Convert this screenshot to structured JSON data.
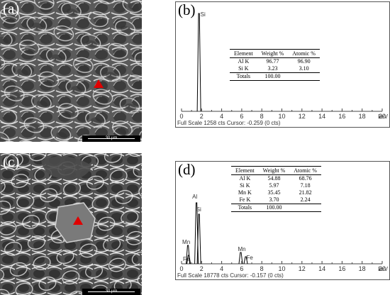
{
  "panels": {
    "a": {
      "label": "(a)",
      "scale_label": "30 µm"
    },
    "c": {
      "label": "(c)",
      "scale_label": "30 µm"
    },
    "b": {
      "label": "(b)",
      "status": "Full Scale 1258 cts Cursor: -0.259  (0 cts)",
      "unit": "keV",
      "ticks": [
        "0",
        "2",
        "4",
        "6",
        "8",
        "10",
        "12",
        "14",
        "16",
        "18",
        "20"
      ],
      "peaks": [
        {
          "label": "Si",
          "kev": 1.74
        }
      ],
      "table": {
        "headers": [
          "Element",
          "Weight %",
          "Atomic %"
        ],
        "rows": [
          [
            "Al K",
            "96.77",
            "96.90"
          ],
          [
            "Si K",
            "3.23",
            "3.10"
          ],
          [
            "Totals",
            "100.00",
            ""
          ]
        ]
      }
    },
    "d": {
      "label": "(d)",
      "status": "Full Scale 18778 cts Cursor: -0.157  (0 cts)",
      "unit": "keV",
      "ticks": [
        "0",
        "2",
        "4",
        "6",
        "8",
        "10",
        "12",
        "14",
        "16",
        "18",
        "20"
      ],
      "peaks": [
        {
          "label": "Al",
          "kev": 1.49
        },
        {
          "label": "Si",
          "kev": 1.74
        },
        {
          "label": "Mn",
          "kev": 0.64
        },
        {
          "label": "Fe",
          "kev": 0.71
        },
        {
          "label": "Mn",
          "kev": 5.9
        },
        {
          "label": "Fe",
          "kev": 6.4
        }
      ],
      "table": {
        "headers": [
          "Element",
          "Weight %",
          "Atomic %"
        ],
        "rows": [
          [
            "Al K",
            "54.88",
            "68.76"
          ],
          [
            "Si K",
            "5.97",
            "7.18"
          ],
          [
            "Mn K",
            "35.45",
            "21.82"
          ],
          [
            "Fe K",
            "3.70",
            "2.24"
          ],
          [
            "Totals",
            "100.00",
            ""
          ]
        ]
      }
    }
  },
  "colors": {
    "marker": "#e00000",
    "sem_base": "#6c6c6c",
    "spectrum": "#000000"
  }
}
